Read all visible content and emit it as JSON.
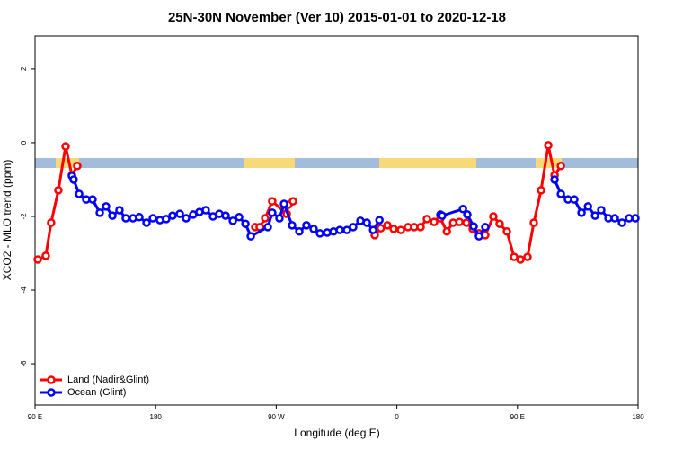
{
  "chart_data": {
    "type": "line",
    "title": "25N-30N November (Ver 10)   2015-01-01 to 2020-12-18",
    "x_label": "Longitude (deg E)",
    "y_label": "XCO2 - MLO trend (ppm)",
    "xlim": [
      90,
      540
    ],
    "xticks": [
      {
        "value": 90,
        "label": "90 E"
      },
      {
        "value": 180,
        "label": "180"
      },
      {
        "value": 270,
        "label": "90 W"
      },
      {
        "value": 360,
        "label": "0"
      },
      {
        "value": 450,
        "label": "90 E"
      },
      {
        "value": 540,
        "label": "180"
      }
    ],
    "ylim": [
      -7.12,
      2.9
    ],
    "yticks": [
      -6,
      -4,
      -2,
      0,
      2
    ],
    "legend": "bottom-left",
    "series": [
      {
        "name": "Land (Nadir&Glint)",
        "color": "#ff0000",
        "x": [
          92,
          98,
          102,
          107.4,
          112.8,
          117.5,
          121.5,
          200,
          254.3,
          257.6,
          261.7,
          267,
          277.8,
          279.1,
          282.5,
          300,
          343.5,
          348,
          352.9,
          357.6,
          363,
          368.3,
          373,
          377.7,
          382.4,
          387.8,
          392.5,
          397.3,
          402,
          406.7,
          411.9,
          416.6,
          421.3,
          426,
          432,
          436.7,
          442.1,
          447.5,
          452.2,
          457.5,
          462.2,
          467.6,
          473,
          477.7,
          482.4
        ],
        "values": [
          -3.17,
          -3.07,
          -2.17,
          -1.29,
          -0.1,
          -0.88,
          -0.63,
          null,
          -2.29,
          -2.29,
          -2.05,
          -1.59,
          -1.93,
          -1.68,
          -1.59,
          null,
          -2.51,
          -2.32,
          -2.24,
          -2.34,
          -2.37,
          -2.29,
          -2.29,
          -2.29,
          -2.07,
          -2.15,
          -2.05,
          -2.41,
          -2.17,
          -2.15,
          -2.17,
          -2.34,
          -2.46,
          -2.51,
          -2.0,
          -2.2,
          -2.41,
          -3.1,
          -3.17,
          -3.1,
          -2.17,
          -1.29,
          -0.07,
          -0.88,
          -0.63
        ]
      },
      {
        "name": "Ocean (Glint)",
        "color": "#0000ff",
        "x": [
          117.5,
          118.8,
          122.9,
          128.2,
          132.9,
          138.3,
          143,
          147.7,
          153,
          157.7,
          163.1,
          167.8,
          173.2,
          177.9,
          183.2,
          187.9,
          192.6,
          198,
          202.7,
          208,
          212.7,
          217.4,
          222.8,
          227.5,
          232.2,
          237.6,
          242.3,
          247,
          251,
          263.7,
          267,
          272.4,
          275.8,
          281.8,
          287.2,
          292.5,
          297.9,
          302.6,
          308,
          312.7,
          317.4,
          322.7,
          327.4,
          332.8,
          337.6,
          342.3,
          347,
          370,
          392.5,
          393.8,
          409.3,
          412.6,
          417.3,
          421.3,
          426,
          450,
          477.7,
          482.4,
          487.7,
          492.4,
          497.8,
          502.6,
          507.9,
          512.5,
          517.9,
          522.6,
          528,
          533.3,
          538
        ],
        "values": [
          -0.9,
          -1.0,
          -1.39,
          -1.54,
          -1.54,
          -1.9,
          -1.73,
          -1.98,
          -1.83,
          -2.05,
          -2.05,
          -2.02,
          -2.17,
          -2.05,
          -2.1,
          -2.07,
          -1.98,
          -1.93,
          -2.05,
          -1.95,
          -1.88,
          -1.83,
          -2.0,
          -1.93,
          -1.98,
          -2.12,
          -2.02,
          -2.2,
          -2.54,
          -2.29,
          -1.9,
          -2.05,
          -1.66,
          -2.24,
          -2.41,
          -2.24,
          -2.34,
          -2.46,
          -2.44,
          -2.41,
          -2.37,
          -2.37,
          -2.29,
          -2.12,
          -2.17,
          -2.37,
          -2.1,
          null,
          -1.95,
          -1.98,
          -1.8,
          -1.95,
          -2.27,
          -2.54,
          -2.29,
          null,
          -1.0,
          -1.39,
          -1.54,
          -1.54,
          -1.9,
          -1.73,
          -1.98,
          -1.83,
          -2.05,
          -2.05,
          -2.17,
          -2.05,
          -2.05
        ]
      }
    ]
  }
}
